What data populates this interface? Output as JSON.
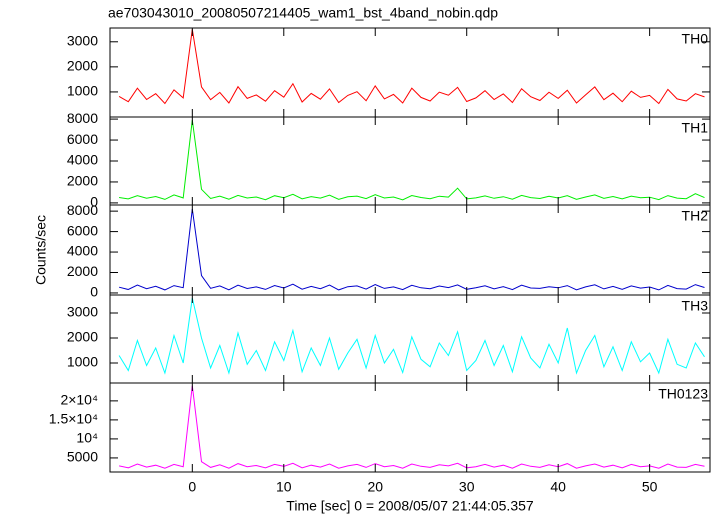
{
  "chart_data": [
    {
      "type": "line",
      "title": "ae703043010_20080507214405_wam1_bst_4band_nobin.qdp",
      "x": [
        -8,
        -7,
        -6,
        -5,
        -4,
        -3,
        -2,
        -1,
        0,
        1,
        2,
        3,
        4,
        5,
        6,
        7,
        8,
        9,
        10,
        11,
        12,
        13,
        14,
        15,
        16,
        17,
        18,
        19,
        20,
        21,
        22,
        23,
        24,
        25,
        26,
        27,
        28,
        29,
        30,
        31,
        32,
        33,
        34,
        35,
        36,
        37,
        38,
        39,
        40,
        41,
        42,
        43,
        44,
        45,
        46,
        47,
        48,
        49,
        50,
        51,
        52,
        53,
        54,
        55,
        56
      ],
      "series": [
        {
          "name": "TH0",
          "color": "#ff0000",
          "values": [
            820,
            610,
            1150,
            700,
            930,
            540,
            1080,
            760,
            3500,
            1200,
            690,
            980,
            560,
            1210,
            740,
            880,
            630,
            1050,
            790,
            1330,
            600,
            940,
            710,
            1120,
            580,
            860,
            1010,
            650,
            1240,
            720,
            900,
            560,
            1150,
            780,
            640,
            990,
            870,
            1180,
            620,
            760,
            1050,
            700,
            920,
            580,
            1130,
            810,
            660,
            990,
            740,
            1070,
            560,
            880,
            1200,
            690,
            950,
            610,
            1030,
            780,
            860,
            540,
            1100,
            720,
            640,
            930,
            800
          ]
        }
      ],
      "xlim": [
        -9,
        56.6
      ],
      "xticks": [
        0,
        10,
        20,
        30,
        40,
        50
      ],
      "ylim": [
        0,
        3550
      ],
      "yticks": [
        1000,
        2000,
        3000
      ]
    },
    {
      "type": "line",
      "x": [
        -8,
        -7,
        -6,
        -5,
        -4,
        -3,
        -2,
        -1,
        0,
        1,
        2,
        3,
        4,
        5,
        6,
        7,
        8,
        9,
        10,
        11,
        12,
        13,
        14,
        15,
        16,
        17,
        18,
        19,
        20,
        21,
        22,
        23,
        24,
        25,
        26,
        27,
        28,
        29,
        30,
        31,
        32,
        33,
        34,
        35,
        36,
        37,
        38,
        39,
        40,
        41,
        42,
        43,
        44,
        45,
        46,
        47,
        48,
        49,
        50,
        51,
        52,
        53,
        54,
        55,
        56
      ],
      "series": [
        {
          "name": "TH1",
          "color": "#00ee00",
          "values": [
            520,
            380,
            700,
            450,
            610,
            330,
            760,
            480,
            7900,
            1300,
            420,
            650,
            350,
            720,
            470,
            560,
            310,
            690,
            500,
            820,
            390,
            600,
            460,
            740,
            340,
            580,
            650,
            410,
            780,
            470,
            560,
            300,
            710,
            520,
            400,
            640,
            550,
            1400,
            380,
            480,
            670,
            440,
            590,
            350,
            720,
            510,
            420,
            630,
            470,
            690,
            330,
            560,
            760,
            430,
            610,
            380,
            650,
            490,
            540,
            320,
            700,
            460,
            400,
            880,
            510
          ]
        }
      ],
      "xlim": [
        -9,
        56.6
      ],
      "xticks": [
        0,
        10,
        20,
        30,
        40,
        50
      ],
      "ylim": [
        -200,
        8200
      ],
      "yticks": [
        0,
        2000,
        4000,
        6000,
        8000
      ]
    },
    {
      "type": "line",
      "y_label": "Counts/sec",
      "x": [
        -8,
        -7,
        -6,
        -5,
        -4,
        -3,
        -2,
        -1,
        0,
        1,
        2,
        3,
        4,
        5,
        6,
        7,
        8,
        9,
        10,
        11,
        12,
        13,
        14,
        15,
        16,
        17,
        18,
        19,
        20,
        21,
        22,
        23,
        24,
        25,
        26,
        27,
        28,
        29,
        30,
        31,
        32,
        33,
        34,
        35,
        36,
        37,
        38,
        39,
        40,
        41,
        42,
        43,
        44,
        45,
        46,
        47,
        48,
        49,
        50,
        51,
        52,
        53,
        54,
        55,
        56
      ],
      "series": [
        {
          "name": "TH2",
          "color": "#0000cc",
          "values": [
            560,
            340,
            780,
            420,
            650,
            300,
            720,
            510,
            8200,
            1700,
            460,
            690,
            310,
            760,
            440,
            590,
            350,
            730,
            480,
            860,
            370,
            640,
            420,
            780,
            300,
            610,
            690,
            380,
            820,
            450,
            590,
            330,
            750,
            500,
            420,
            680,
            520,
            790,
            360,
            510,
            700,
            410,
            620,
            330,
            760,
            480,
            450,
            600,
            500,
            720,
            310,
            590,
            800,
            400,
            640,
            360,
            690,
            470,
            580,
            300,
            740,
            430,
            380,
            820,
            530
          ]
        }
      ],
      "xlim": [
        -9,
        56.6
      ],
      "xticks": [
        0,
        10,
        20,
        30,
        40,
        50
      ],
      "ylim": [
        -200,
        8600
      ],
      "yticks": [
        0,
        2000,
        4000,
        6000,
        8000
      ]
    },
    {
      "type": "line",
      "x": [
        -8,
        -7,
        -6,
        -5,
        -4,
        -3,
        -2,
        -1,
        0,
        1,
        2,
        3,
        4,
        5,
        6,
        7,
        8,
        9,
        10,
        11,
        12,
        13,
        14,
        15,
        16,
        17,
        18,
        19,
        20,
        21,
        22,
        23,
        24,
        25,
        26,
        27,
        28,
        29,
        30,
        31,
        32,
        33,
        34,
        35,
        36,
        37,
        38,
        39,
        40,
        41,
        42,
        43,
        44,
        45,
        46,
        47,
        48,
        49,
        50,
        51,
        52,
        53,
        54,
        55,
        56
      ],
      "series": [
        {
          "name": "TH3",
          "color": "#00ffff",
          "values": [
            1300,
            700,
            1900,
            900,
            1600,
            600,
            2100,
            1000,
            3600,
            2000,
            800,
            1700,
            600,
            2200,
            950,
            1500,
            700,
            1850,
            1100,
            2300,
            650,
            1600,
            900,
            2000,
            750,
            1400,
            1950,
            800,
            2100,
            1000,
            1550,
            620,
            2050,
            1150,
            850,
            1800,
            1300,
            2250,
            700,
            1100,
            1900,
            900,
            1700,
            650,
            2050,
            1200,
            800,
            1750,
            1000,
            2400,
            600,
            1500,
            2100,
            850,
            1650,
            700,
            1850,
            1050,
            1400,
            600,
            1950,
            950,
            800,
            1800,
            1250
          ]
        }
      ],
      "xlim": [
        -9,
        56.6
      ],
      "xticks": [
        0,
        10,
        20,
        30,
        40,
        50
      ],
      "ylim": [
        200,
        3720
      ],
      "yticks": [
        1000,
        2000,
        3000
      ]
    },
    {
      "type": "line",
      "x_label": "Time [sec] 0 = 2008/05/07 21:44:05.357",
      "x": [
        -8,
        -7,
        -6,
        -5,
        -4,
        -3,
        -2,
        -1,
        0,
        1,
        2,
        3,
        4,
        5,
        6,
        7,
        8,
        9,
        10,
        11,
        12,
        13,
        14,
        15,
        16,
        17,
        18,
        19,
        20,
        21,
        22,
        23,
        24,
        25,
        26,
        27,
        28,
        29,
        30,
        31,
        32,
        33,
        34,
        35,
        36,
        37,
        38,
        39,
        40,
        41,
        42,
        43,
        44,
        45,
        46,
        47,
        48,
        49,
        50,
        51,
        52,
        53,
        54,
        55,
        56
      ],
      "series": [
        {
          "name": "TH0123",
          "color": "#ff00ff",
          "values": [
            2900,
            2400,
            3400,
            2600,
            3100,
            2300,
            3300,
            2700,
            24000,
            4000,
            2500,
            3200,
            2300,
            3500,
            2700,
            3000,
            2400,
            3300,
            2800,
            3600,
            2400,
            3100,
            2600,
            3400,
            2300,
            2900,
            3300,
            2500,
            3500,
            2700,
            3000,
            2300,
            3400,
            2800,
            2500,
            3200,
            2900,
            3600,
            2400,
            2700,
            3300,
            2600,
            3100,
            2300,
            3400,
            2800,
            2500,
            3200,
            2700,
            3500,
            2300,
            2900,
            3400,
            2600,
            3100,
            2400,
            3300,
            2700,
            2900,
            2300,
            3400,
            2600,
            2500,
            3300,
            2800
          ]
        }
      ],
      "xlim": [
        -9,
        56.6
      ],
      "xticks": [
        0,
        10,
        20,
        30,
        40,
        50
      ],
      "ylim": [
        1300,
        24700
      ],
      "yticks": [
        5000,
        {
          "value": 10000,
          "label": "10⁴"
        },
        {
          "value": 15000,
          "label": "1.5×10⁴"
        },
        {
          "value": 20000,
          "label": "2×10⁴"
        }
      ]
    }
  ]
}
